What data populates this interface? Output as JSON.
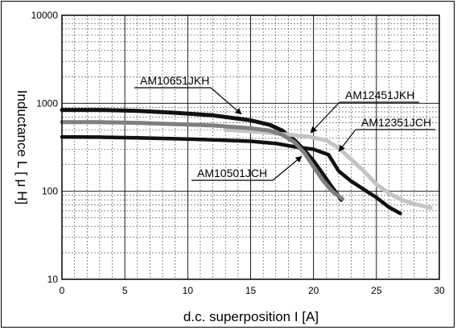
{
  "chart_data": {
    "type": "line",
    "title": "",
    "xlabel": "d.c. superposition I [A]",
    "ylabel": "Inductance L [ μ H]",
    "xlim": [
      0,
      30
    ],
    "ylim": [
      10,
      10000
    ],
    "yscale": "log",
    "grid": true,
    "x_ticks": [
      0,
      5,
      10,
      15,
      20,
      25,
      30
    ],
    "x_tick_labels": [
      "0",
      "5",
      "10",
      "15",
      "20",
      "25",
      "30"
    ],
    "y_ticks": [
      10,
      100,
      1000,
      10000
    ],
    "y_tick_labels": [
      "10",
      "100",
      "1000",
      "10000"
    ],
    "series": [
      {
        "name": "AM10651JKH",
        "color": "#111111",
        "x": [
          0,
          3,
          6,
          9,
          12,
          15,
          16.5,
          17.5,
          18.5,
          19.3,
          20,
          20.7,
          21.3,
          22.2
        ],
        "y": [
          840,
          840,
          820,
          780,
          730,
          640,
          570,
          490,
          380,
          290,
          220,
          160,
          120,
          80
        ]
      },
      {
        "name": "AM12451JKH",
        "color": "#c4c4c4",
        "x": [
          13,
          16,
          18,
          19.5,
          21,
          22,
          23,
          24,
          25,
          26,
          27,
          28,
          29.3
        ],
        "y": [
          500,
          470,
          440,
          420,
          380,
          310,
          230,
          170,
          120,
          95,
          80,
          72,
          65
        ]
      },
      {
        "name": "AM12351JCH",
        "color": "#111111",
        "x": [
          0,
          3,
          6,
          9,
          12,
          15,
          17,
          18.5,
          20,
          21.2,
          22,
          23,
          24,
          25,
          26,
          26.9
        ],
        "y": [
          415,
          412,
          405,
          395,
          385,
          370,
          350,
          320,
          300,
          260,
          170,
          130,
          105,
          85,
          66,
          56
        ]
      },
      {
        "name": "AM10501JCH",
        "color": "#7f7f7f",
        "x": [
          0,
          3,
          6,
          9,
          12,
          15,
          16.5,
          17.5,
          18.5,
          19.3,
          20,
          20.8,
          21.5,
          22.3
        ],
        "y": [
          610,
          610,
          600,
          580,
          560,
          520,
          490,
          440,
          360,
          270,
          190,
          130,
          100,
          82
        ]
      }
    ],
    "annotations": [
      {
        "text": "AM10651JKH",
        "series": "AM10651JKH"
      },
      {
        "text": "AM12451JKH",
        "series": "AM12451JKH"
      },
      {
        "text": "AM12351JCH",
        "series": "AM12351JCH"
      },
      {
        "text": "AM10501JCH",
        "series": "AM10501JCH"
      }
    ]
  }
}
